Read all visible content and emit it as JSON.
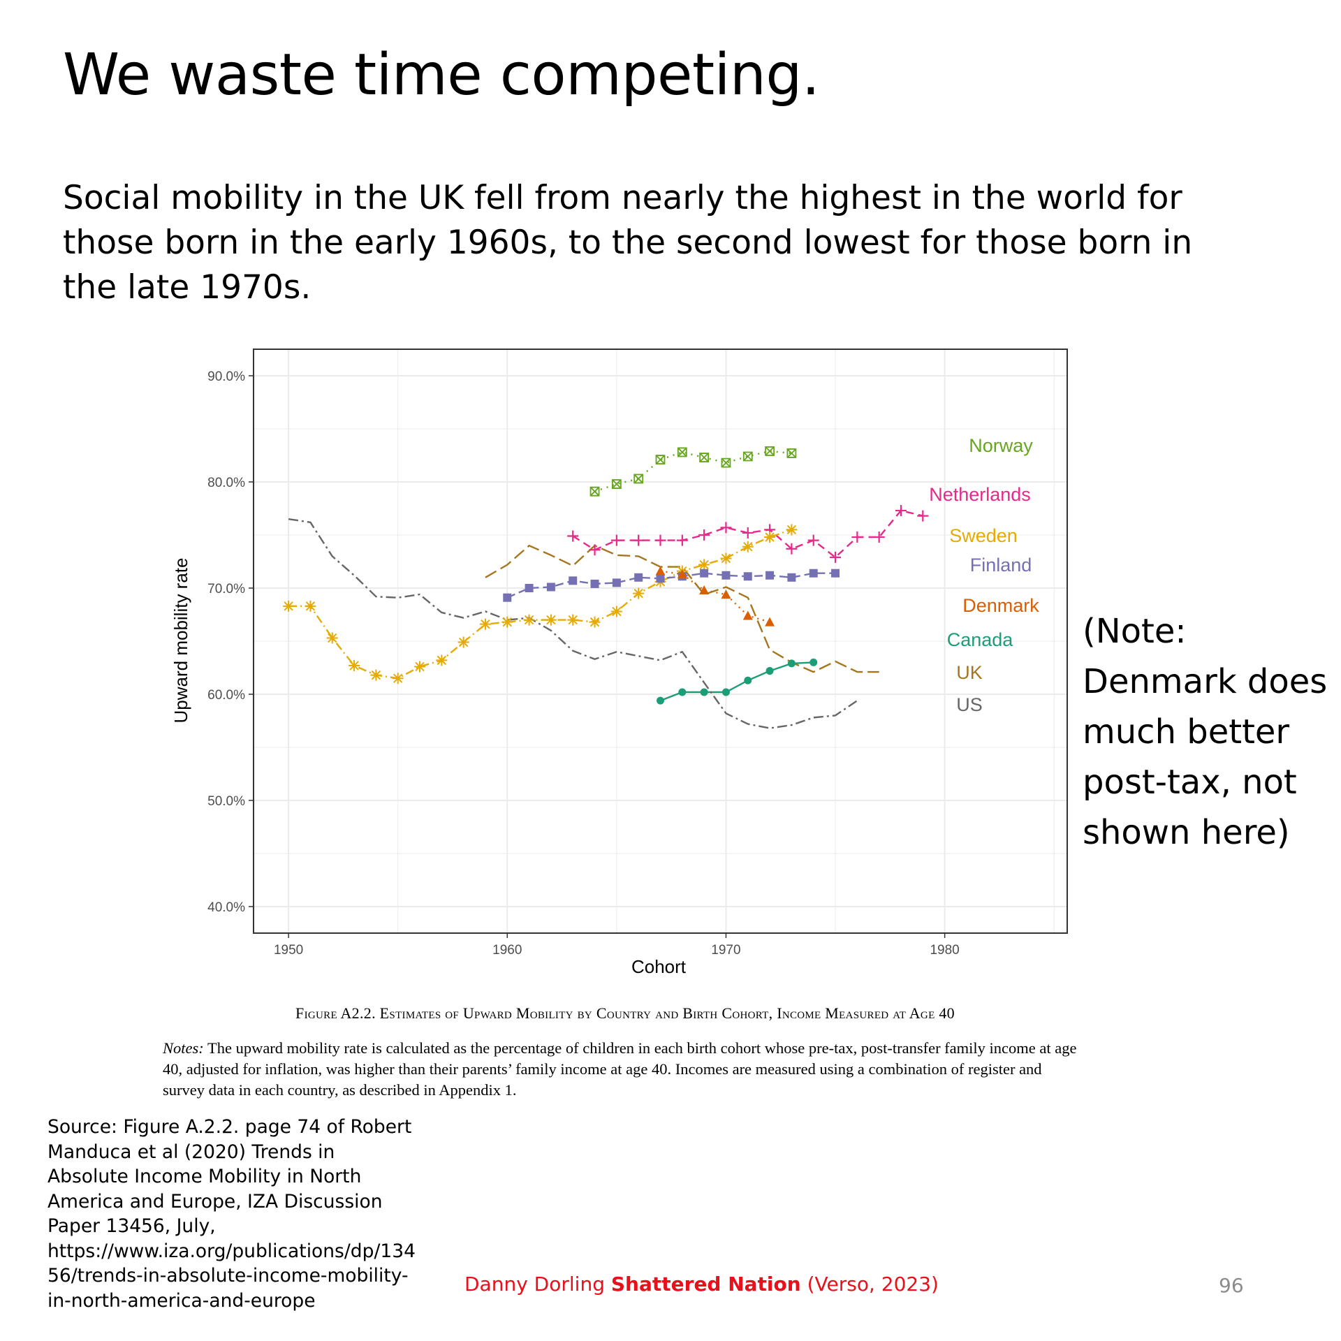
{
  "slide": {
    "title": "We waste time competing.",
    "subtitle": "Social mobility in the UK fell from nearly the highest in the world for those born in the early 1960s, to the second lowest for those born in the late 1970s.",
    "side_note": "(Note: Denmark does much better post-tax, not shown here)",
    "figure_caption": "Figure A2.2. Estimates of Upward Mobility by Country and Birth Cohort, Income Measured at Age 40",
    "notes_label": "Notes:",
    "notes_text": " The upward mobility rate is calculated as the percentage of children in each birth cohort whose pre-tax, post-transfer family income at age 40, adjusted for inflation, was higher than their parents’ family income at age 40. Incomes are measured using a combination of register and survey data in each country, as described in Appendix 1.",
    "source": "Source: Figure A.2.2. page 74 of Robert Manduca et al (2020) Trends in Absolute Income Mobility in North America and Europe, IZA Discussion Paper 13456, July, https://www.iza.org/publications/dp/13456/trends-in-absolute-income-mobility-in-north-america-and-europe",
    "footer_author": "Danny Dorling ",
    "footer_book": "Shattered Nation",
    "footer_publisher": " (Verso, 2023)",
    "page_number": "96"
  },
  "chart_data": {
    "type": "line",
    "xlabel": "Cohort",
    "ylabel": "Upward mobility rate",
    "xlim": [
      1948.4,
      1985.6
    ],
    "ylim": [
      37.5,
      92.5
    ],
    "x_ticks": [
      1950,
      1960,
      1970,
      1980
    ],
    "x_tick_labels": [
      "1950",
      "1960",
      "1970",
      "1980"
    ],
    "y_ticks": [
      40,
      50,
      60,
      70,
      80,
      90
    ],
    "y_tick_labels": [
      "40.0%",
      "50.0%",
      "60.0%",
      "70.0%",
      "80.0%",
      "90.0%"
    ],
    "grid": true,
    "legend_placement": "right (inline labels)",
    "series": [
      {
        "name": "Norway",
        "color": "#66a61e",
        "dash": "2,7",
        "marker": "boxx",
        "x": [
          1964,
          1965,
          1966,
          1967,
          1968,
          1969,
          1970,
          1971,
          1972,
          1973
        ],
        "y": [
          79.1,
          79.8,
          80.3,
          82.1,
          82.8,
          82.3,
          81.8,
          82.4,
          82.9,
          82.7
        ]
      },
      {
        "name": "Netherlands",
        "color": "#e7298a",
        "dash": "11,7",
        "marker": "plus",
        "x": [
          1963,
          1964,
          1965,
          1966,
          1967,
          1968,
          1969,
          1970,
          1971,
          1972,
          1973,
          1974,
          1975,
          1976,
          1977,
          1978,
          1979
        ],
        "y": [
          74.9,
          73.6,
          74.5,
          74.5,
          74.5,
          74.5,
          75.0,
          75.7,
          75.2,
          75.5,
          73.7,
          74.5,
          72.9,
          74.8,
          74.8,
          77.3,
          76.8
        ]
      },
      {
        "name": "Sweden",
        "color": "#e6ab02",
        "dash": "12,5,2,5",
        "marker": "star",
        "x": [
          1950,
          1951,
          1952,
          1953,
          1954,
          1955,
          1956,
          1957,
          1958,
          1959,
          1960,
          1961,
          1962,
          1963,
          1964,
          1965,
          1966,
          1967,
          1968,
          1969,
          1970,
          1971,
          1972,
          1973
        ],
        "y": [
          68.3,
          68.3,
          65.3,
          62.7,
          61.8,
          61.5,
          62.6,
          63.2,
          64.9,
          66.6,
          66.8,
          67.0,
          67.0,
          67.0,
          66.8,
          67.8,
          69.5,
          70.6,
          71.6,
          72.2,
          72.8,
          73.9,
          74.8,
          75.5
        ]
      },
      {
        "name": "Finland",
        "color": "#7570b3",
        "dash": "12,6",
        "marker": "square",
        "x": [
          1960,
          1961,
          1962,
          1963,
          1964,
          1965,
          1966,
          1967,
          1968,
          1969,
          1970,
          1971,
          1972,
          1973,
          1974,
          1975
        ],
        "y": [
          69.1,
          70.0,
          70.1,
          70.7,
          70.4,
          70.5,
          71.0,
          70.9,
          71.1,
          71.4,
          71.2,
          71.1,
          71.2,
          71.0,
          71.4,
          71.4
        ]
      },
      {
        "name": "Denmark",
        "color": "#d95f02",
        "dash": "2,6",
        "marker": "triangle",
        "x": [
          1967,
          1968,
          1969,
          1970,
          1971,
          1972
        ],
        "y": [
          71.6,
          71.3,
          69.8,
          69.4,
          67.4,
          66.8
        ]
      },
      {
        "name": "Canada",
        "color": "#1b9e77",
        "dash": "",
        "marker": "circle",
        "x": [
          1967,
          1968,
          1969,
          1970,
          1971,
          1972,
          1973,
          1974
        ],
        "y": [
          59.4,
          60.2,
          60.2,
          60.2,
          61.3,
          62.2,
          62.9,
          63.0
        ]
      },
      {
        "name": "UK",
        "color": "#a6761d",
        "dash": "18,7",
        "marker": "none",
        "x": [
          1959,
          1960,
          1961,
          1962,
          1963,
          1964,
          1965,
          1966,
          1967,
          1968,
          1969,
          1970,
          1971,
          1972,
          1973,
          1974,
          1975,
          1976,
          1977
        ],
        "y": [
          71.0,
          72.2,
          74.0,
          73.1,
          72.1,
          74.0,
          73.1,
          73.0,
          72.0,
          72.0,
          69.4,
          70.1,
          69.1,
          64.2,
          63.0,
          62.1,
          63.1,
          62.1,
          62.1
        ]
      },
      {
        "name": "US",
        "color": "#666666",
        "dash": "14,5,3,5",
        "marker": "none",
        "x": [
          1950,
          1951,
          1952,
          1953,
          1954,
          1955,
          1956,
          1957,
          1958,
          1959,
          1960,
          1961,
          1962,
          1963,
          1964,
          1965,
          1966,
          1967,
          1968,
          1969,
          1970,
          1971,
          1972,
          1973,
          1974,
          1975,
          1976
        ],
        "y": [
          76.5,
          76.2,
          73.0,
          71.2,
          69.2,
          69.1,
          69.4,
          67.7,
          67.2,
          67.8,
          67.0,
          67.2,
          66.0,
          64.1,
          63.3,
          64.0,
          63.6,
          63.2,
          64.0,
          61.1,
          58.2,
          57.2,
          56.8,
          57.1,
          57.8,
          58.0,
          59.4
        ]
      }
    ]
  }
}
